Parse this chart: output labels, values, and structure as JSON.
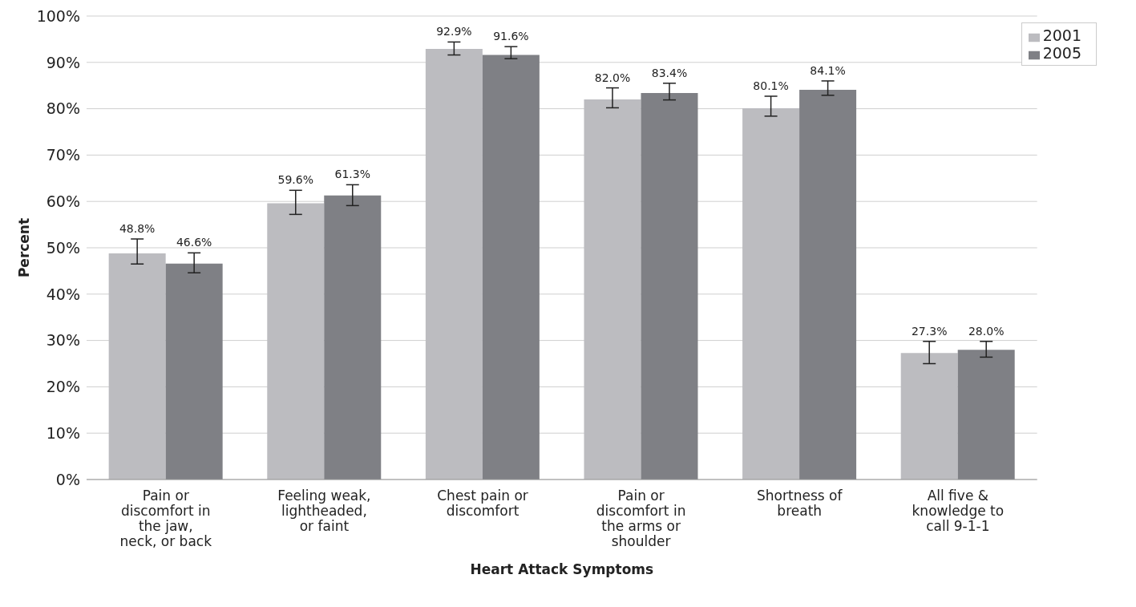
{
  "chart_data": {
    "type": "bar",
    "xlabel": "Heart Attack Symptoms",
    "ylabel": "Percent",
    "categories": [
      "Pain or discomfort in the jaw, neck, or back",
      "Feeling weak, lightheaded, or faint",
      "Chest pain or discomfort",
      "Pain or discomfort in the arms or shoulder",
      "Shortness of breath",
      "All five & knowledge to call 9-1-1"
    ],
    "series": [
      {
        "name": "2001",
        "color": "#bcbcc0",
        "values": [
          48.8,
          59.6,
          92.9,
          82.0,
          80.1,
          27.3
        ],
        "value_labels": [
          "48.8%",
          "59.6%",
          "92.9%",
          "82.0%",
          "80.1%",
          "27.3%"
        ],
        "errors": [
          [
            46.5,
            51.9
          ],
          [
            57.2,
            62.4
          ],
          [
            91.6,
            94.4
          ],
          [
            80.2,
            84.5
          ],
          [
            78.4,
            82.7
          ],
          [
            25.0,
            29.8
          ]
        ]
      },
      {
        "name": "2005",
        "color": "#7f8085",
        "values": [
          46.6,
          61.3,
          91.6,
          83.4,
          84.1,
          28.0
        ],
        "value_labels": [
          "46.6%",
          "61.3%",
          "91.6%",
          "83.4%",
          "84.1%",
          "28.0%"
        ],
        "errors": [
          [
            44.6,
            48.9
          ],
          [
            59.1,
            63.6
          ],
          [
            90.8,
            93.4
          ],
          [
            81.9,
            85.5
          ],
          [
            82.9,
            86.0
          ],
          [
            26.4,
            29.8
          ]
        ]
      }
    ],
    "ylim": [
      0,
      100
    ],
    "yticks": [
      {
        "value": 0,
        "label": "0%"
      },
      {
        "value": 10,
        "label": "10%"
      },
      {
        "value": 20,
        "label": "20%"
      },
      {
        "value": 30,
        "label": "30%"
      },
      {
        "value": 40,
        "label": "40%"
      },
      {
        "value": 50,
        "label": "50%"
      },
      {
        "value": 60,
        "label": "60%"
      },
      {
        "value": 70,
        "label": "70%"
      },
      {
        "value": 80,
        "label": "80%"
      },
      {
        "value": 90,
        "label": "90%"
      },
      {
        "value": 100,
        "label": "100%"
      }
    ],
    "grid": "y",
    "legend": "top right"
  }
}
